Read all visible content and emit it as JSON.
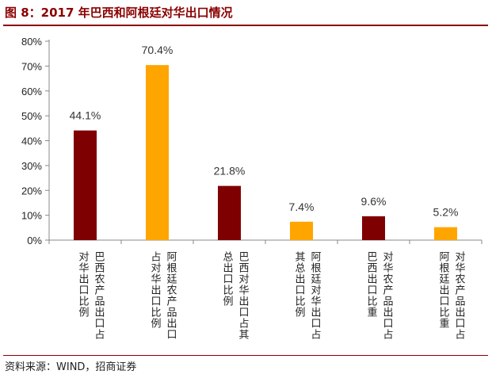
{
  "title": "图 8：2017 年巴西和阿根廷对华出口情况",
  "source": "资料来源：WIND，招商证券",
  "colors": {
    "brazil": "#7f0000",
    "argentina": "#ffa500",
    "accent": "#8b0000"
  },
  "chart_data": {
    "type": "bar",
    "title": "2017 年巴西和阿根廷对华出口情况",
    "categories": [
      "巴西农产品出口占对华出口比例",
      "阿根廷农产品出口占对华出口比例",
      "巴西对华出口占其总出口比例",
      "阿根廷对华出口占其总出口比例",
      "对华农产品出口占巴西出口比重",
      "对华农产品出口占阿根廷出口比重"
    ],
    "values": [
      44.1,
      70.4,
      21.8,
      7.4,
      9.6,
      5.2
    ],
    "value_labels": [
      "44.1%",
      "70.4%",
      "21.8%",
      "7.4%",
      "9.6%",
      "5.2%"
    ],
    "bar_colors": [
      "#7f0000",
      "#ffa500",
      "#7f0000",
      "#ffa500",
      "#7f0000",
      "#ffa500"
    ],
    "ylim": [
      0,
      80
    ],
    "yticks": [
      0,
      10,
      20,
      30,
      40,
      50,
      60,
      70,
      80
    ],
    "ytick_labels": [
      "0%",
      "10%",
      "20%",
      "30%",
      "40%",
      "50%",
      "60%",
      "70%",
      "80%"
    ],
    "xlabel": "",
    "ylabel": "",
    "grid": false
  }
}
